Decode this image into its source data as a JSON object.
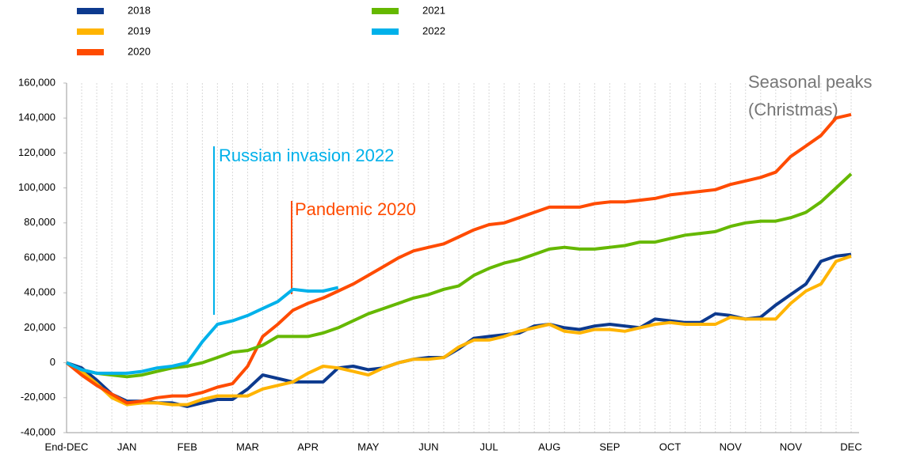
{
  "chart_data": {
    "type": "line",
    "categories": [
      "End-DEC",
      null,
      null,
      null,
      "JAN",
      null,
      null,
      null,
      "FEB",
      null,
      null,
      null,
      "MAR",
      null,
      null,
      null,
      "APR",
      null,
      null,
      null,
      "MAY",
      null,
      null,
      null,
      "JUN",
      null,
      null,
      null,
      "JUL",
      null,
      null,
      null,
      "AUG",
      null,
      null,
      null,
      "SEP",
      null,
      null,
      null,
      "OCT",
      null,
      null,
      null,
      "NOV",
      null,
      null,
      null,
      "NOV",
      null,
      null,
      null,
      "DEC"
    ],
    "series": [
      {
        "name": "2018",
        "color": "#0d3a8e",
        "values": [
          0,
          -3000,
          -10000,
          -18000,
          -22000,
          -22000,
          -23000,
          -23000,
          -25000,
          -23000,
          -21000,
          -21000,
          -15000,
          -7000,
          -9000,
          -11000,
          -11000,
          -11000,
          -3000,
          -2000,
          -4000,
          -3000,
          0,
          2000,
          3000,
          3000,
          8000,
          14000,
          15000,
          16000,
          17000,
          21000,
          22000,
          20000,
          19000,
          21000,
          22000,
          21000,
          20000,
          25000,
          24000,
          23000,
          23000,
          28000,
          27000,
          25000,
          26000,
          33000,
          39000,
          45000,
          58000,
          61000,
          62000
        ]
      },
      {
        "name": "2019",
        "color": "#ffb400",
        "values": [
          0,
          -5000,
          -12000,
          -20000,
          -24000,
          -23000,
          -23000,
          -24000,
          -24000,
          -21000,
          -19000,
          -19000,
          -19000,
          -15000,
          -13000,
          -11000,
          -6000,
          -2000,
          -3000,
          -5000,
          -7000,
          -3000,
          0,
          2000,
          2000,
          3000,
          9000,
          13000,
          13000,
          15000,
          18000,
          20000,
          22000,
          18000,
          17000,
          19000,
          19000,
          18000,
          20000,
          22000,
          23000,
          22000,
          22000,
          22000,
          26000,
          25000,
          25000,
          25000,
          34000,
          41000,
          45000,
          58000,
          61000
        ]
      },
      {
        "name": "2020",
        "color": "#ff4b00",
        "values": [
          0,
          -7000,
          -13000,
          -18000,
          -23000,
          -22000,
          -20000,
          -19000,
          -19000,
          -17000,
          -14000,
          -12000,
          -2000,
          15000,
          22000,
          30000,
          34000,
          37000,
          41000,
          45000,
          50000,
          55000,
          60000,
          64000,
          66000,
          68000,
          72000,
          76000,
          79000,
          80000,
          83000,
          86000,
          89000,
          89000,
          89000,
          91000,
          92000,
          92000,
          93000,
          94000,
          96000,
          97000,
          98000,
          99000,
          102000,
          104000,
          106000,
          109000,
          118000,
          124000,
          130000,
          140000,
          142000
        ]
      },
      {
        "name": "2021",
        "color": "#65b800",
        "values": [
          0,
          -4000,
          -6000,
          -7000,
          -8000,
          -7000,
          -5000,
          -3000,
          -2000,
          0,
          3000,
          6000,
          7000,
          10000,
          15000,
          15000,
          15000,
          17000,
          20000,
          24000,
          28000,
          31000,
          34000,
          37000,
          39000,
          42000,
          44000,
          50000,
          54000,
          57000,
          59000,
          62000,
          65000,
          66000,
          65000,
          65000,
          66000,
          67000,
          69000,
          69000,
          71000,
          73000,
          74000,
          75000,
          78000,
          80000,
          81000,
          81000,
          83000,
          86000,
          92000,
          100000,
          108000
        ]
      },
      {
        "name": "2022",
        "color": "#00b1ea",
        "values": [
          0,
          -4000,
          -6000,
          -6000,
          -6000,
          -5000,
          -3000,
          -2000,
          0,
          12000,
          22000,
          24000,
          27000,
          31000,
          35000,
          42000,
          41000,
          41000,
          43000,
          null,
          null,
          null,
          null,
          null,
          null,
          null,
          null,
          null,
          null,
          null,
          null,
          null,
          null,
          null,
          null,
          null,
          null,
          null,
          null,
          null,
          null,
          null,
          null,
          null,
          null,
          null,
          null,
          null,
          null,
          null,
          null,
          null,
          null
        ]
      }
    ],
    "annotations": [
      {
        "text": "Russian invasion 2022",
        "color": "#00b1ea"
      },
      {
        "text": "Pandemic 2020",
        "color": "#ff4b00"
      },
      {
        "text": "Seasonal peaks",
        "color": "#777777"
      },
      {
        "text": "(Christmas)",
        "color": "#777777"
      }
    ],
    "ylim": [
      -40000,
      160000
    ],
    "yticks": [
      {
        "value": -40000,
        "label": "-40,000"
      },
      {
        "value": -20000,
        "label": "-20,000"
      },
      0,
      {
        "value": 20000,
        "label": "20,000"
      },
      {
        "value": 40000,
        "label": "40,000"
      },
      {
        "value": 60000,
        "label": "60,000"
      },
      {
        "value": 80000,
        "label": "80,000"
      },
      {
        "value": 100000,
        "label": "100,000"
      },
      {
        "value": 120000,
        "label": "120,000"
      },
      {
        "value": 140000,
        "label": "140,000"
      },
      {
        "value": 160000,
        "label": "160,000"
      }
    ],
    "grid": true
  }
}
